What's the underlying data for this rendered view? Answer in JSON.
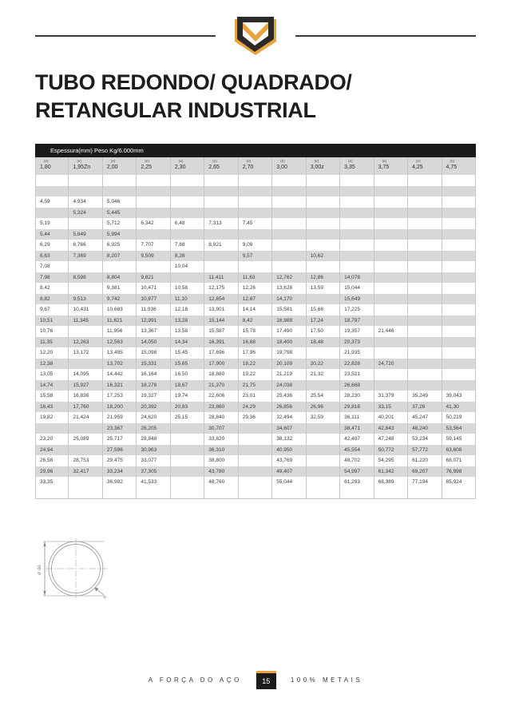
{
  "title": {
    "line1": "TUBO REDONDO/ QUADRADO/",
    "line2": "RETANGULAR INDUSTRIAL"
  },
  "colors": {
    "accent_gold": "#E8A23E",
    "logo_dark": "#2B2A28",
    "bar_black": "#1C1B19",
    "row_shade": "#D8D8D8",
    "grid_line": "#C6C6C6"
  },
  "table": {
    "header_bar": "Espessura(mm) Peso Kg/6.000mm",
    "col_sub_label": "(e)",
    "columns": [
      "1,80",
      "1,95Zn",
      "2,00",
      "2,25",
      "2,30",
      "2,65",
      "2,70",
      "3,00",
      "3,00z",
      "3,35",
      "3,75",
      "4,25",
      "4,75"
    ],
    "rows": [
      {
        "shaded": false,
        "cells": [
          "",
          "",
          "",
          "",
          "",
          "",
          "",
          "",
          "",
          "",
          "",
          "",
          ""
        ]
      },
      {
        "shaded": true,
        "cells": [
          "",
          "",
          "",
          "",
          "",
          "",
          "",
          "",
          "",
          "",
          "",
          "",
          ""
        ]
      },
      {
        "shaded": false,
        "cells": [
          "4,59",
          "4,934",
          "5,046",
          "",
          "",
          "",
          "",
          "",
          "",
          "",
          "",
          "",
          ""
        ]
      },
      {
        "shaded": true,
        "cells": [
          "",
          "5,324",
          "5,445",
          "",
          "",
          "",
          "",
          "",
          "",
          "",
          "",
          "",
          ""
        ]
      },
      {
        "shaded": false,
        "cells": [
          "5,19",
          "",
          "5,712",
          "6,342",
          "6,48",
          "7,313",
          "7,45",
          "",
          "",
          "",
          "",
          "",
          ""
        ]
      },
      {
        "shaded": true,
        "cells": [
          "5,44",
          "5,849",
          "5,994",
          "",
          "",
          "",
          "",
          "",
          "",
          "",
          "",
          "",
          ""
        ]
      },
      {
        "shaded": false,
        "cells": [
          "6,29",
          "6,766",
          "6,925",
          "7,707",
          "7,88",
          "8,921",
          "9,09",
          "",
          "",
          "",
          "",
          "",
          ""
        ]
      },
      {
        "shaded": true,
        "cells": [
          "6,63",
          "7,369",
          "8,207",
          "9,509",
          "8,28",
          "",
          "9,57",
          "",
          "10,62",
          "",
          "",
          "",
          ""
        ]
      },
      {
        "shaded": false,
        "cells": [
          "7,08",
          "",
          "",
          "",
          "10,04",
          "",
          "",
          "",
          "",
          "",
          "",
          "",
          ""
        ]
      },
      {
        "shaded": true,
        "cells": [
          "7,98",
          "8,598",
          "8,804",
          "9,821",
          "",
          "11,411",
          "11,63",
          "12,762",
          "12,86",
          "14,078",
          "",
          "",
          ""
        ]
      },
      {
        "shaded": false,
        "cells": [
          "8,42",
          "",
          "9,381",
          "10,471",
          "10,58",
          "12,175",
          "12,26",
          "13,628",
          "13,59",
          "15,044",
          "",
          "",
          ""
        ]
      },
      {
        "shaded": true,
        "cells": [
          "8,82",
          "9,513",
          "9,742",
          "10,877",
          "11,10",
          "12,654",
          "12,87",
          "14,170",
          "",
          "15,649",
          "",
          "",
          ""
        ]
      },
      {
        "shaded": false,
        "cells": [
          "9,67",
          "10,431",
          "10,683",
          "11,936",
          "12,18",
          "13,901",
          "14,14",
          "15,581",
          "15,68",
          "17,225",
          "",
          "",
          ""
        ]
      },
      {
        "shaded": true,
        "cells": [
          "10,51",
          "11,345",
          "11,621",
          "12,991",
          "13,28",
          "15,144",
          "8,42",
          "16,988",
          "17,24",
          "18,797",
          "",
          "",
          ""
        ]
      },
      {
        "shaded": false,
        "cells": [
          "10,76",
          "",
          "11,956",
          "13,367",
          "13,58",
          "15,587",
          "15,78",
          "17,490",
          "17,50",
          "19,357",
          "21,446",
          "",
          ""
        ]
      },
      {
        "shaded": true,
        "cells": [
          "11,35",
          "12,263",
          "12,563",
          "14,050",
          "14,34",
          "16,391",
          "16,68",
          "18,400",
          "18,48",
          "20,373",
          "",
          "",
          ""
        ]
      },
      {
        "shaded": false,
        "cells": [
          "12,20",
          "13,172",
          "13,495",
          "15,098",
          "15,45",
          "17,696",
          "17,96",
          "19,798",
          "",
          "21,935",
          "",
          "",
          ""
        ]
      },
      {
        "shaded": true,
        "cells": [
          "12,38",
          "",
          "13,702",
          "15,331",
          "15,65",
          "17,900",
          "18,22",
          "20,109",
          "20,22",
          "22,828",
          "24,720",
          "",
          ""
        ]
      },
      {
        "shaded": false,
        "cells": [
          "13,05",
          "14,095",
          "14,442",
          "16,164",
          "16,50",
          "18,880",
          "19,22",
          "21,219",
          "21,32",
          "23,521",
          "",
          "",
          ""
        ]
      },
      {
        "shaded": true,
        "cells": [
          "14,74",
          "15,927",
          "16,321",
          "18,278",
          "18,67",
          "21,370",
          "21,75",
          "24,038",
          "",
          "26,668",
          "",
          "",
          ""
        ]
      },
      {
        "shaded": false,
        "cells": [
          "15,58",
          "16,836",
          "17,253",
          "19,327",
          "19,74",
          "22,606",
          "23,01",
          "25,436",
          "25,54",
          "28,230",
          "31,379",
          "35,249",
          "39,043"
        ]
      },
      {
        "shaded": true,
        "cells": [
          "16,43",
          "17,760",
          "18,200",
          "20,392",
          "20,83",
          "23,860",
          "24,29",
          "26,856",
          "26,96",
          "29,816",
          "33,15",
          "37,26",
          "41,30"
        ]
      },
      {
        "shaded": false,
        "cells": [
          "19,82",
          "21,424",
          "21,959",
          "24,620",
          "25,15",
          "28,840",
          "29,36",
          "32,494",
          "32,59",
          "36,111",
          "40,201",
          "45,247",
          "50,219"
        ]
      },
      {
        "shaded": true,
        "cells": [
          "",
          "",
          "23,367",
          "26,205",
          "",
          "30,707",
          "",
          "34,607",
          "",
          "38,471",
          "42,843",
          "48,240",
          "53,564"
        ]
      },
      {
        "shaded": false,
        "cells": [
          "23,20",
          "25,089",
          "25,717",
          "28,848",
          "",
          "33,820",
          "",
          "38,132",
          "",
          "42,407",
          "47,248",
          "53,234",
          "59,145"
        ]
      },
      {
        "shaded": true,
        "cells": [
          "24,94",
          "",
          "27,596",
          "30,963",
          "",
          "36,310",
          "",
          "40,950",
          "",
          "45,554",
          "50,772",
          "57,772",
          "63,608"
        ]
      },
      {
        "shaded": false,
        "cells": [
          "26,58",
          "28,753",
          "29,475",
          "33,077",
          "",
          "38,800",
          "",
          "43,769",
          "",
          "48,702",
          "54,295",
          "61,220",
          "68,071"
        ]
      },
      {
        "shaded": true,
        "cells": [
          "29,96",
          "32,417",
          "33,234",
          "37,305",
          "",
          "43,780",
          "",
          "49,407",
          "",
          "54,997",
          "61,342",
          "69,207",
          "76,998"
        ]
      },
      {
        "shaded": false,
        "cells": [
          "33,35",
          "",
          "36,992",
          "41,533",
          "",
          "48,760",
          "",
          "55,044",
          "",
          "61,293",
          "68,389",
          "77,194",
          "85,924"
        ]
      },
      {
        "shaded": false,
        "cells": [
          "",
          "",
          "",
          "",
          "",
          "",
          "",
          "",
          "",
          "",
          "",
          "",
          ""
        ]
      }
    ]
  },
  "diagram": {
    "dim_label": "ø de",
    "thickness_label": "e"
  },
  "footer": {
    "left": "A FORÇA DO AÇO",
    "page_number": "15",
    "right": "100% METAIS"
  }
}
